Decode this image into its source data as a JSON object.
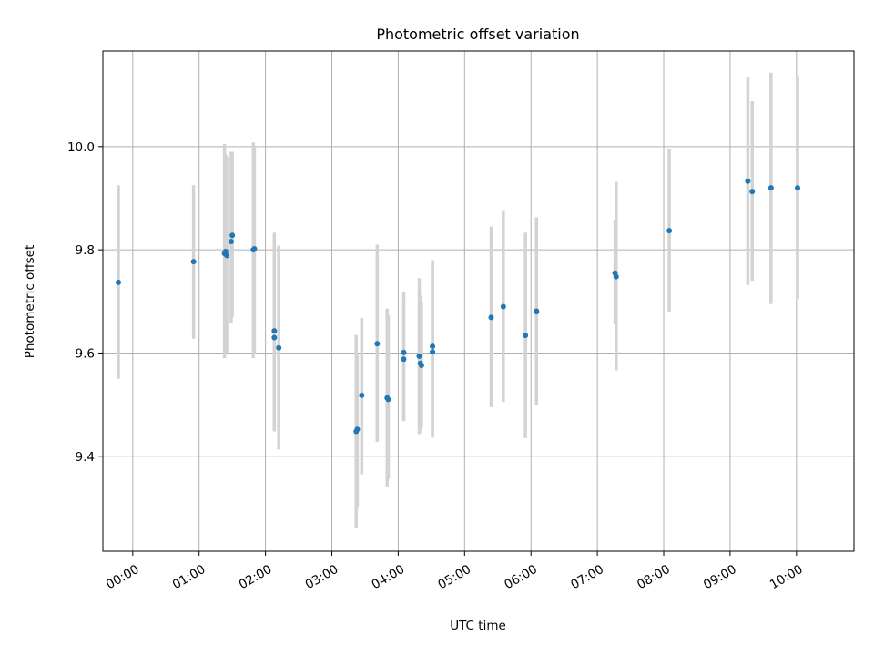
{
  "chart_data": {
    "type": "scatter",
    "title": "Photometric offset variation",
    "xlabel": "UTC time",
    "ylabel": "Photometric offset",
    "xlim": [
      "23:33",
      "10:52"
    ],
    "ylim": [
      9.216,
      10.185
    ],
    "grid": true,
    "x_ticks": [
      "00:00",
      "01:00",
      "02:00",
      "03:00",
      "04:00",
      "05:00",
      "06:00",
      "07:00",
      "08:00",
      "09:00",
      "10:00"
    ],
    "y_ticks": [
      "9.4",
      "9.6",
      "9.8",
      "10.0"
    ],
    "y_tick_values": [
      9.4,
      9.6,
      9.8,
      10.0
    ],
    "point_color": "#1f77b4",
    "errorbar_color": "#d3d3d3",
    "points": [
      {
        "x": "23:47",
        "y": 9.737,
        "ylo": 9.55,
        "yhi": 9.925
      },
      {
        "x": "00:55",
        "y": 9.777,
        "ylo": 9.628,
        "yhi": 9.925
      },
      {
        "x": "01:23",
        "y": 9.793,
        "ylo": 9.59,
        "yhi": 10.005
      },
      {
        "x": "01:24",
        "y": 9.797,
        "ylo": 9.61,
        "yhi": 9.985
      },
      {
        "x": "01:25",
        "y": 9.789,
        "ylo": 9.6,
        "yhi": 9.98
      },
      {
        "x": "01:29",
        "y": 9.816,
        "ylo": 9.658,
        "yhi": 9.99
      },
      {
        "x": "01:30",
        "y": 9.828,
        "ylo": 9.67,
        "yhi": 9.99
      },
      {
        "x": "01:49",
        "y": 9.8,
        "ylo": 9.59,
        "yhi": 10.008
      },
      {
        "x": "01:50",
        "y": 9.802,
        "ylo": 9.6,
        "yhi": 10.0
      },
      {
        "x": "02:08",
        "y": 9.643,
        "ylo": 9.45,
        "yhi": 9.833
      },
      {
        "x": "02:08",
        "y": 9.63,
        "ylo": 9.448,
        "yhi": 9.82
      },
      {
        "x": "02:12",
        "y": 9.61,
        "ylo": 9.413,
        "yhi": 9.808
      },
      {
        "x": "03:22",
        "y": 9.448,
        "ylo": 9.26,
        "yhi": 9.635
      },
      {
        "x": "03:23",
        "y": 9.452,
        "ylo": 9.3,
        "yhi": 9.6
      },
      {
        "x": "03:27",
        "y": 9.518,
        "ylo": 9.365,
        "yhi": 9.668
      },
      {
        "x": "03:41",
        "y": 9.618,
        "ylo": 9.428,
        "yhi": 9.81
      },
      {
        "x": "03:50",
        "y": 9.513,
        "ylo": 9.34,
        "yhi": 9.686
      },
      {
        "x": "03:51",
        "y": 9.51,
        "ylo": 9.356,
        "yhi": 9.673
      },
      {
        "x": "04:05",
        "y": 9.601,
        "ylo": 9.468,
        "yhi": 9.718
      },
      {
        "x": "04:05",
        "y": 9.588,
        "ylo": 9.47,
        "yhi": 9.7
      },
      {
        "x": "04:19",
        "y": 9.594,
        "ylo": 9.443,
        "yhi": 9.745
      },
      {
        "x": "04:20",
        "y": 9.58,
        "ylo": 9.448,
        "yhi": 9.712
      },
      {
        "x": "04:21",
        "y": 9.576,
        "ylo": 9.455,
        "yhi": 9.7
      },
      {
        "x": "04:31",
        "y": 9.613,
        "ylo": 9.436,
        "yhi": 9.78
      },
      {
        "x": "04:31",
        "y": 9.602,
        "ylo": 9.44,
        "yhi": 9.765
      },
      {
        "x": "05:24",
        "y": 9.669,
        "ylo": 9.495,
        "yhi": 9.845
      },
      {
        "x": "05:35",
        "y": 9.69,
        "ylo": 9.505,
        "yhi": 9.875
      },
      {
        "x": "05:55",
        "y": 9.634,
        "ylo": 9.435,
        "yhi": 9.833
      },
      {
        "x": "06:05",
        "y": 9.681,
        "ylo": 9.5,
        "yhi": 9.863
      },
      {
        "x": "06:05",
        "y": 9.68,
        "ylo": 9.5,
        "yhi": 9.86
      },
      {
        "x": "07:16",
        "y": 9.755,
        "ylo": 9.655,
        "yhi": 9.858
      },
      {
        "x": "07:17",
        "y": 9.748,
        "ylo": 9.566,
        "yhi": 9.932
      },
      {
        "x": "08:05",
        "y": 9.837,
        "ylo": 9.68,
        "yhi": 9.995
      },
      {
        "x": "09:16",
        "y": 9.933,
        "ylo": 9.732,
        "yhi": 10.135
      },
      {
        "x": "09:20",
        "y": 9.913,
        "ylo": 9.74,
        "yhi": 10.088
      },
      {
        "x": "09:37",
        "y": 9.92,
        "ylo": 9.695,
        "yhi": 10.143
      },
      {
        "x": "10:01",
        "y": 9.92,
        "ylo": 9.705,
        "yhi": 10.138
      }
    ]
  }
}
